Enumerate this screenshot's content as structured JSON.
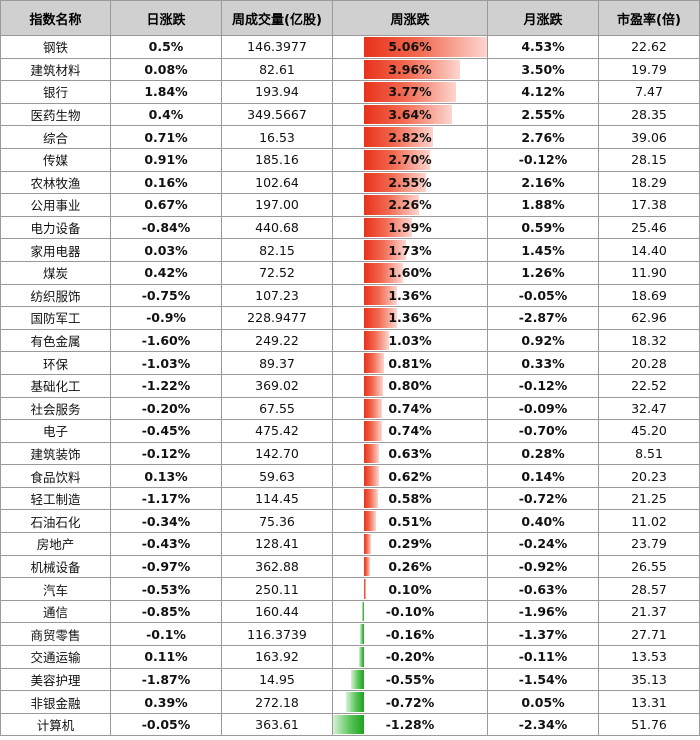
{
  "headers": [
    "指数名称",
    "日涨跌",
    "周成交量(亿股)",
    "周涨跌",
    "月涨跌",
    "市盈率(倍)"
  ],
  "colors": {
    "up": "#c00000",
    "down": "#00a000",
    "header_bg": "#d0d0d0",
    "bar_up": "#e8321b",
    "bar_down": "#1fa21f"
  },
  "rows": [
    {
      "name": "钢铁",
      "daily": "0.5%",
      "volume": "146.3977",
      "weekly": "5.06%",
      "monthly": "4.53%",
      "pe": "22.62"
    },
    {
      "name": "建筑材料",
      "daily": "0.08%",
      "volume": "82.61",
      "weekly": "3.96%",
      "monthly": "3.50%",
      "pe": "19.79"
    },
    {
      "name": "银行",
      "daily": "1.84%",
      "volume": "193.94",
      "weekly": "3.77%",
      "monthly": "4.12%",
      "pe": "7.47"
    },
    {
      "name": "医药生物",
      "daily": "0.4%",
      "volume": "349.5667",
      "weekly": "3.64%",
      "monthly": "2.55%",
      "pe": "28.35"
    },
    {
      "name": "综合",
      "daily": "0.71%",
      "volume": "16.53",
      "weekly": "2.82%",
      "monthly": "2.76%",
      "pe": "39.06"
    },
    {
      "name": "传媒",
      "daily": "0.91%",
      "volume": "185.16",
      "weekly": "2.70%",
      "monthly": "-0.12%",
      "pe": "28.15"
    },
    {
      "name": "农林牧渔",
      "daily": "0.16%",
      "volume": "102.64",
      "weekly": "2.55%",
      "monthly": "2.16%",
      "pe": "18.29"
    },
    {
      "name": "公用事业",
      "daily": "0.67%",
      "volume": "197.00",
      "weekly": "2.26%",
      "monthly": "1.88%",
      "pe": "17.38"
    },
    {
      "name": "电力设备",
      "daily": "-0.84%",
      "volume": "440.68",
      "weekly": "1.99%",
      "monthly": "0.59%",
      "pe": "25.46"
    },
    {
      "name": "家用电器",
      "daily": "0.03%",
      "volume": "82.15",
      "weekly": "1.73%",
      "monthly": "1.45%",
      "pe": "14.40"
    },
    {
      "name": "煤炭",
      "daily": "0.42%",
      "volume": "72.52",
      "weekly": "1.60%",
      "monthly": "1.26%",
      "pe": "11.90"
    },
    {
      "name": "纺织服饰",
      "daily": "-0.75%",
      "volume": "107.23",
      "weekly": "1.36%",
      "monthly": "-0.05%",
      "pe": "18.69"
    },
    {
      "name": "国防军工",
      "daily": "-0.9%",
      "volume": "228.9477",
      "weekly": "1.36%",
      "monthly": "-2.87%",
      "pe": "62.96"
    },
    {
      "name": "有色金属",
      "daily": "-1.60%",
      "volume": "249.22",
      "weekly": "1.03%",
      "monthly": "0.92%",
      "pe": "18.32"
    },
    {
      "name": "环保",
      "daily": "-1.03%",
      "volume": "89.37",
      "weekly": "0.81%",
      "monthly": "0.33%",
      "pe": "20.28"
    },
    {
      "name": "基础化工",
      "daily": "-1.22%",
      "volume": "369.02",
      "weekly": "0.80%",
      "monthly": "-0.12%",
      "pe": "22.52"
    },
    {
      "name": "社会服务",
      "daily": "-0.20%",
      "volume": "67.55",
      "weekly": "0.74%",
      "monthly": "-0.09%",
      "pe": "32.47"
    },
    {
      "name": "电子",
      "daily": "-0.45%",
      "volume": "475.42",
      "weekly": "0.74%",
      "monthly": "-0.70%",
      "pe": "45.20"
    },
    {
      "name": "建筑装饰",
      "daily": "-0.12%",
      "volume": "142.70",
      "weekly": "0.63%",
      "monthly": "0.28%",
      "pe": "8.51"
    },
    {
      "name": "食品饮料",
      "daily": "0.13%",
      "volume": "59.63",
      "weekly": "0.62%",
      "monthly": "0.14%",
      "pe": "20.23"
    },
    {
      "name": "轻工制造",
      "daily": "-1.17%",
      "volume": "114.45",
      "weekly": "0.58%",
      "monthly": "-0.72%",
      "pe": "21.25"
    },
    {
      "name": "石油石化",
      "daily": "-0.34%",
      "volume": "75.36",
      "weekly": "0.51%",
      "monthly": "0.40%",
      "pe": "11.02"
    },
    {
      "name": "房地产",
      "daily": "-0.43%",
      "volume": "128.41",
      "weekly": "0.29%",
      "monthly": "-0.24%",
      "pe": "23.79"
    },
    {
      "name": "机械设备",
      "daily": "-0.97%",
      "volume": "362.88",
      "weekly": "0.26%",
      "monthly": "-0.92%",
      "pe": "26.55"
    },
    {
      "name": "汽车",
      "daily": "-0.53%",
      "volume": "250.11",
      "weekly": "0.10%",
      "monthly": "-0.63%",
      "pe": "28.57"
    },
    {
      "name": "通信",
      "daily": "-0.85%",
      "volume": "160.44",
      "weekly": "-0.10%",
      "monthly": "-1.96%",
      "pe": "21.37"
    },
    {
      "name": "商贸零售",
      "daily": "-0.1%",
      "volume": "116.3739",
      "weekly": "-0.16%",
      "monthly": "-1.37%",
      "pe": "27.71"
    },
    {
      "name": "交通运输",
      "daily": "0.11%",
      "volume": "163.92",
      "weekly": "-0.20%",
      "monthly": "-0.11%",
      "pe": "13.53"
    },
    {
      "name": "美容护理",
      "daily": "-1.87%",
      "volume": "14.95",
      "weekly": "-0.55%",
      "monthly": "-1.54%",
      "pe": "35.13"
    },
    {
      "name": "非银金融",
      "daily": "0.39%",
      "volume": "272.18",
      "weekly": "-0.72%",
      "monthly": "0.05%",
      "pe": "13.31"
    },
    {
      "name": "计算机",
      "daily": "-0.05%",
      "volume": "363.61",
      "weekly": "-1.28%",
      "monthly": "-2.34%",
      "pe": "51.76"
    }
  ]
}
